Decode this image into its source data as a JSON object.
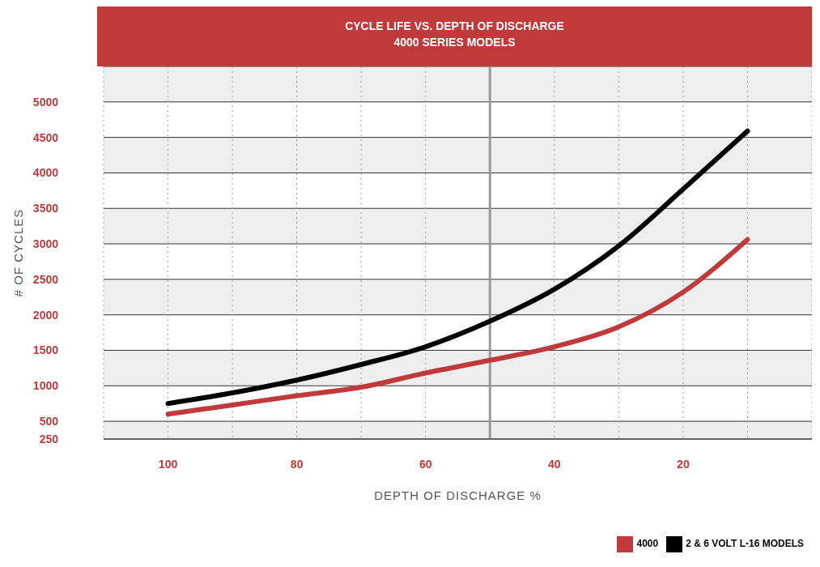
{
  "chart_data": {
    "type": "line",
    "title": "CYCLE LIFE VS. DEPTH OF DISCHARGE",
    "subtitle": "4000 SERIES MODELS",
    "xlabel": "DEPTH OF DISCHARGE %",
    "ylabel": "# OF CYCLES",
    "x": [
      100,
      90,
      80,
      70,
      60,
      50,
      40,
      30,
      20,
      10
    ],
    "series": [
      {
        "name": "4000",
        "color": "#c0393b",
        "values": [
          600,
          730,
          860,
          980,
          1180,
          1360,
          1550,
          1830,
          2320,
          3060
        ]
      },
      {
        "name": "2 & 6 VOLT L-16 MODELS",
        "color": "#000000",
        "values": [
          750,
          900,
          1080,
          1300,
          1550,
          1910,
          2360,
          2970,
          3770,
          4590
        ]
      }
    ],
    "xlim": [
      110,
      0
    ],
    "xticks": [
      100,
      {
        "value": 90,
        "label": null
      },
      80,
      {
        "value": 70,
        "label": null
      },
      60,
      {
        "value": 50,
        "label": null
      },
      40,
      {
        "value": 30,
        "label": null
      },
      20,
      {
        "value": 10,
        "label": null
      }
    ],
    "ylim": [
      250,
      5500
    ],
    "yticks": [
      250,
      500,
      1000,
      1500,
      2000,
      2500,
      3000,
      3500,
      4000,
      4500,
      5000
    ],
    "ref_lines": [
      {
        "axis": "x",
        "value": 50,
        "color": "#999999"
      }
    ],
    "grid": true,
    "legend": "bottom right",
    "marker": "none",
    "line_style": "solid"
  }
}
